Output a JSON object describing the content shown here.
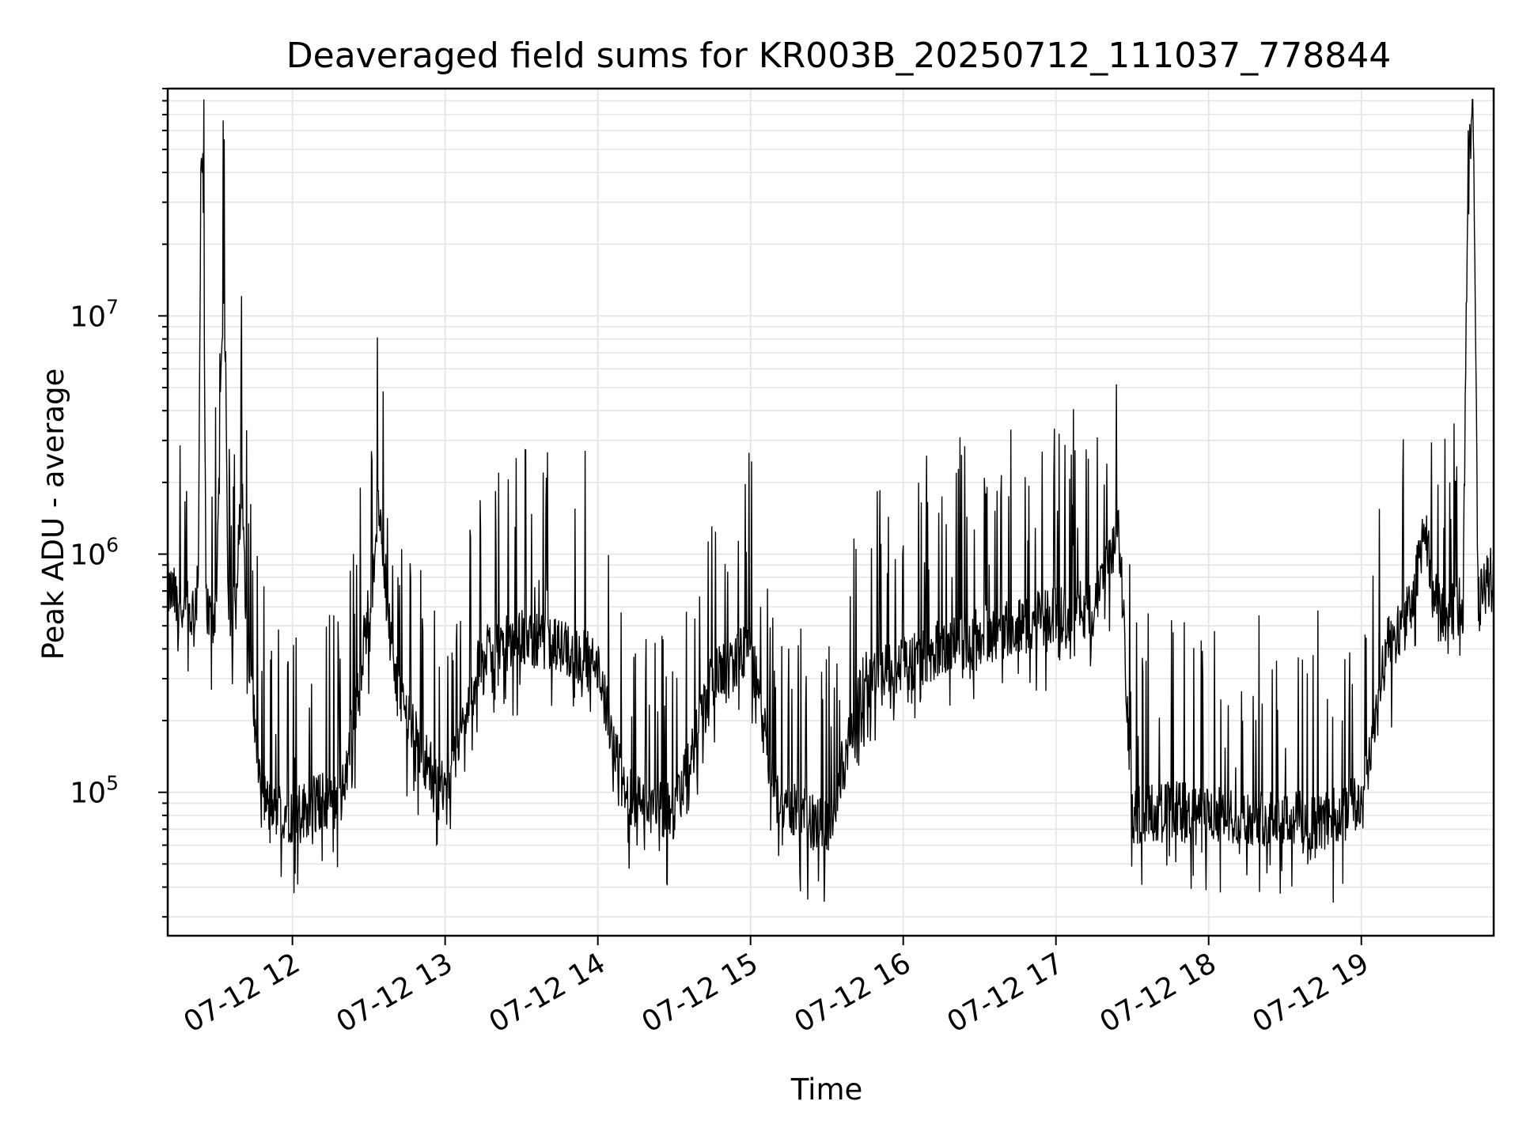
{
  "chart_data": {
    "type": "line",
    "title": "Deaveraged field sums for KR003B_20250712_111037_778844",
    "xlabel": "Time",
    "ylabel": "Peak ADU - average",
    "y_scale": "log",
    "ylim": [
      25000,
      90000000
    ],
    "xlim": [
      "2025-07-12 11:11",
      "2025-07-12 19:52"
    ],
    "grid": true,
    "line_color": "#000000",
    "grid_color": "#e5e5e5",
    "x_ticks": [
      {
        "value": "2025-07-12 12:00",
        "label": "07-12 12"
      },
      {
        "value": "2025-07-12 13:00",
        "label": "07-12 13"
      },
      {
        "value": "2025-07-12 14:00",
        "label": "07-12 14"
      },
      {
        "value": "2025-07-12 15:00",
        "label": "07-12 15"
      },
      {
        "value": "2025-07-12 16:00",
        "label": "07-12 16"
      },
      {
        "value": "2025-07-12 17:00",
        "label": "07-12 17"
      },
      {
        "value": "2025-07-12 18:00",
        "label": "07-12 18"
      },
      {
        "value": "2025-07-12 19:00",
        "label": "07-12 19"
      }
    ],
    "y_ticks": [
      {
        "value": 100000,
        "base": "10",
        "exp": "5"
      },
      {
        "value": 1000000,
        "base": "10",
        "exp": "6"
      },
      {
        "value": 10000000,
        "base": "10",
        "exp": "7"
      }
    ],
    "series": [
      {
        "name": "",
        "x": [
          "2025-07-12 11:11",
          "2025-07-12 11:15",
          "2025-07-12 11:18",
          "2025-07-12 11:20",
          "2025-07-12 11:23",
          "2025-07-12 11:24",
          "2025-07-12 11:25",
          "2025-07-12 11:26",
          "2025-07-12 11:28",
          "2025-07-12 11:30",
          "2025-07-12 11:33",
          "2025-07-12 11:35",
          "2025-07-12 11:36",
          "2025-07-12 11:38",
          "2025-07-12 11:40",
          "2025-07-12 11:42",
          "2025-07-12 11:44",
          "2025-07-12 11:46",
          "2025-07-12 11:48",
          "2025-07-12 11:50",
          "2025-07-12 11:52",
          "2025-07-12 11:56",
          "2025-07-12 12:00",
          "2025-07-12 12:10",
          "2025-07-12 12:20",
          "2025-07-12 12:30",
          "2025-07-12 12:34",
          "2025-07-12 12:40",
          "2025-07-12 12:50",
          "2025-07-12 13:00",
          "2025-07-12 13:15",
          "2025-07-12 13:30",
          "2025-07-12 13:45",
          "2025-07-12 14:00",
          "2025-07-12 14:10",
          "2025-07-12 14:20",
          "2025-07-12 14:30",
          "2025-07-12 14:45",
          "2025-07-12 15:00",
          "2025-07-12 15:10",
          "2025-07-12 15:20",
          "2025-07-12 15:30",
          "2025-07-12 15:45",
          "2025-07-12 16:00",
          "2025-07-12 16:15",
          "2025-07-12 16:30",
          "2025-07-12 16:45",
          "2025-07-12 17:00",
          "2025-07-12 17:15",
          "2025-07-12 17:25",
          "2025-07-12 17:30",
          "2025-07-12 17:45",
          "2025-07-12 18:00",
          "2025-07-12 18:15",
          "2025-07-12 18:30",
          "2025-07-12 18:45",
          "2025-07-12 19:00",
          "2025-07-12 19:10",
          "2025-07-12 19:20",
          "2025-07-12 19:25",
          "2025-07-12 19:28",
          "2025-07-12 19:32",
          "2025-07-12 19:36",
          "2025-07-12 19:40",
          "2025-07-12 19:42",
          "2025-07-12 19:44",
          "2025-07-12 19:46",
          "2025-07-12 19:48",
          "2025-07-12 19:50",
          "2025-07-12 19:52"
        ],
        "y": [
          700000,
          650000,
          600000,
          550000,
          700000,
          42000000,
          46000000,
          650000,
          520000,
          600000,
          14000000,
          600000,
          500000,
          650000,
          2000000,
          500000,
          300000,
          150000,
          100000,
          90000,
          80000,
          85000,
          80000,
          90000,
          100000,
          600000,
          1600000,
          300000,
          150000,
          100000,
          400000,
          450000,
          400000,
          350000,
          100000,
          90000,
          80000,
          300000,
          400000,
          90000,
          80000,
          70000,
          300000,
          350000,
          400000,
          450000,
          500000,
          550000,
          600000,
          1200000,
          80000,
          85000,
          80000,
          80000,
          78000,
          75000,
          90000,
          400000,
          600000,
          1400000,
          700000,
          600000,
          580000,
          620000,
          58000000,
          55000000,
          600000,
          700000,
          800000,
          900000
        ]
      }
    ],
    "annotations": []
  }
}
